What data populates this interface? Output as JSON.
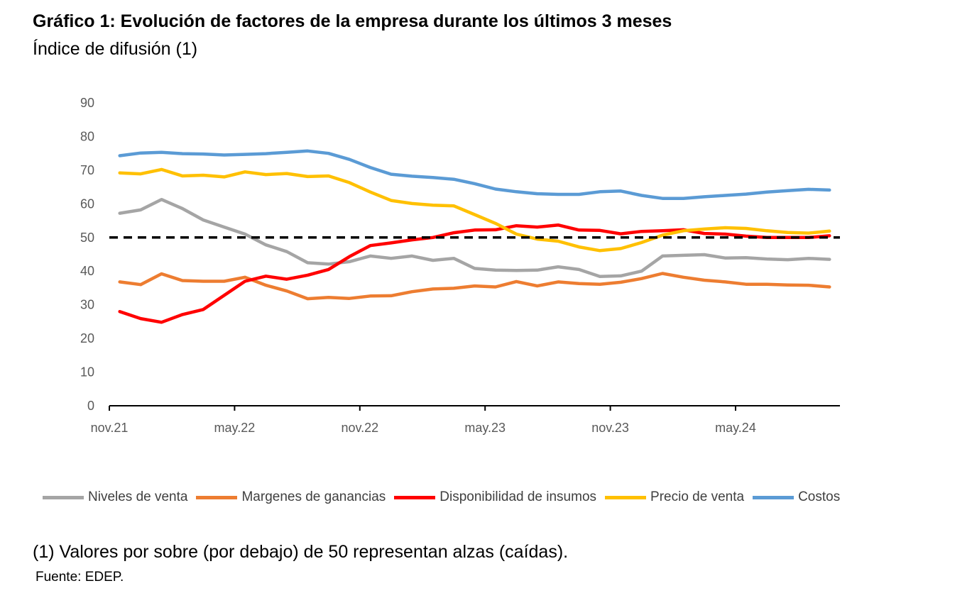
{
  "header": {
    "title": "Gráfico 1: Evolución de factores de la empresa durante los últimos 3 meses",
    "subtitle": "Índice de difusión (1)"
  },
  "footer": {
    "note": "(1) Valores por sobre (por debajo) de 50 representan alzas (caídas).",
    "source": "Fuente: EDEP."
  },
  "chart_data": {
    "type": "line",
    "title": "",
    "xlabel": "",
    "ylabel": "",
    "ylim": [
      0,
      90
    ],
    "yticks": [
      0,
      10,
      20,
      30,
      40,
      50,
      60,
      70,
      80,
      90
    ],
    "xtick_labels": [
      "nov.21",
      "may.22",
      "nov.22",
      "may.23",
      "nov.23",
      "may.24"
    ],
    "x": [
      "nov.21",
      "dic.21",
      "ene.22",
      "feb.22",
      "mar.22",
      "abr.22",
      "may.22",
      "jun.22",
      "jul.22",
      "ago.22",
      "sep.22",
      "oct.22",
      "nov.22",
      "dic.22",
      "ene.23",
      "feb.23",
      "mar.23",
      "abr.23",
      "may.23",
      "jun.23",
      "jul.23",
      "ago.23",
      "sep.23",
      "oct.23",
      "nov.23",
      "dic.23",
      "ene.24",
      "feb.24",
      "mar.24",
      "abr.24",
      "may.24",
      "jun.24",
      "jul.24",
      "ago.24",
      "sep.24"
    ],
    "reference_line": 50,
    "legend_position": "bottom",
    "grid": false,
    "series": [
      {
        "name": "Niveles de venta",
        "color": "#a5a5a5",
        "values": [
          57.2,
          58.2,
          61.3,
          58.6,
          55.2,
          53.1,
          51.0,
          47.8,
          45.8,
          42.5,
          42.1,
          42.8,
          44.5,
          43.8,
          44.5,
          43.2,
          43.8,
          40.8,
          40.3,
          40.2,
          40.3,
          41.3,
          40.5,
          38.4,
          38.6,
          40.0,
          44.5,
          44.7,
          44.9,
          43.9,
          44.0,
          43.6,
          43.4,
          43.8,
          43.5
        ]
      },
      {
        "name": "Margenes de ganancias",
        "color": "#ed7d31",
        "values": [
          36.8,
          36.0,
          39.2,
          37.2,
          37.0,
          37.0,
          38.2,
          35.8,
          34.1,
          31.8,
          32.2,
          31.9,
          32.6,
          32.7,
          33.9,
          34.7,
          34.9,
          35.6,
          35.3,
          36.9,
          35.6,
          36.8,
          36.3,
          36.1,
          36.7,
          37.8,
          39.3,
          38.2,
          37.3,
          36.8,
          36.1,
          36.1,
          35.9,
          35.8,
          35.3
        ]
      },
      {
        "name": "Disponibilidad de insumos",
        "color": "#ff0000",
        "values": [
          28.0,
          25.9,
          24.8,
          27.1,
          28.6,
          32.8,
          37.0,
          38.5,
          37.6,
          38.8,
          40.5,
          44.3,
          47.6,
          48.4,
          49.3,
          50.0,
          51.4,
          52.2,
          52.3,
          53.5,
          53.1,
          53.7,
          52.2,
          52.1,
          51.1,
          51.8,
          52.0,
          52.3,
          51.2,
          51.0,
          50.4,
          50.0,
          50.0,
          50.0,
          50.5
        ]
      },
      {
        "name": "Precio de venta",
        "color": "#ffc000",
        "values": [
          69.2,
          68.9,
          70.2,
          68.3,
          68.5,
          68.0,
          69.5,
          68.7,
          69.0,
          68.1,
          68.3,
          66.3,
          63.5,
          61.0,
          60.1,
          59.6,
          59.4,
          56.8,
          54.2,
          51.0,
          49.5,
          48.9,
          47.2,
          46.1,
          46.7,
          48.5,
          50.7,
          52.0,
          52.5,
          52.9,
          52.7,
          52.0,
          51.5,
          51.3,
          51.9
        ]
      },
      {
        "name": "Costos",
        "color": "#5b9bd5",
        "values": [
          74.3,
          75.1,
          75.3,
          74.9,
          74.8,
          74.5,
          74.7,
          74.9,
          75.3,
          75.7,
          75.0,
          73.2,
          70.8,
          68.8,
          68.2,
          67.8,
          67.3,
          66.0,
          64.4,
          63.6,
          63.0,
          62.8,
          62.8,
          63.6,
          63.8,
          62.5,
          61.6,
          61.6,
          62.1,
          62.5,
          62.9,
          63.5,
          63.9,
          64.3,
          64.1
        ]
      }
    ]
  }
}
